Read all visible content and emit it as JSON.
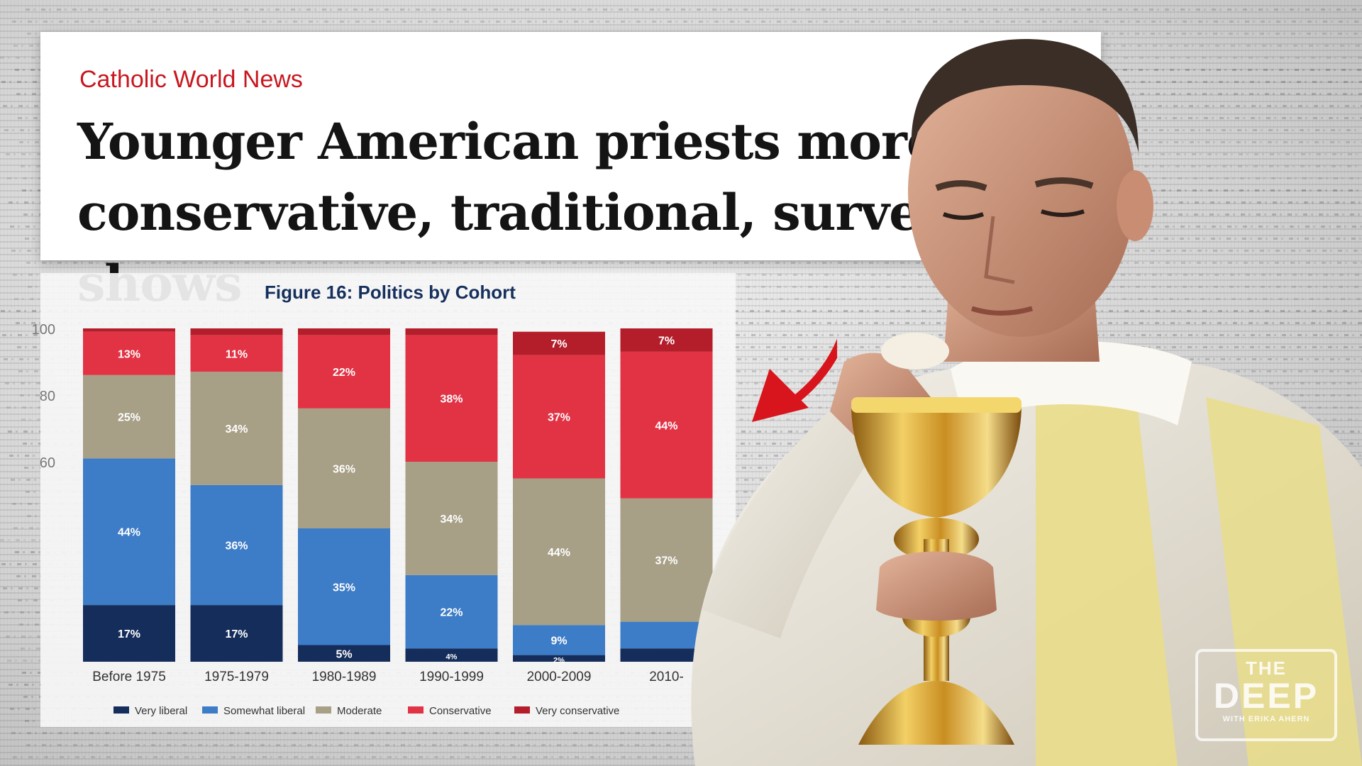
{
  "headline": {
    "source": "Catholic World News",
    "title": "Younger American priests more conservative, traditional, survey shows"
  },
  "watermark": {
    "line1": "THE",
    "line2": "DEEP",
    "line3": "WITH ERIKA AHERN"
  },
  "colors": {
    "very_liberal": "#152d5a",
    "somewhat_liberal": "#3d7cc6",
    "moderate": "#a79f86",
    "conservative": "#e23345",
    "very_conservative": "#b41e2a",
    "accent_red": "#d8141c"
  },
  "chart_data": {
    "type": "bar",
    "stacked": true,
    "title": "Figure 16: Politics by Cohort",
    "categories": [
      "Before 1975",
      "1975-1979",
      "1980-1989",
      "1990-1999",
      "2000-2009",
      "2010-"
    ],
    "ylim": [
      0,
      100
    ],
    "yticks": [
      60,
      80,
      100
    ],
    "legend_position": "bottom",
    "series": [
      {
        "name": "Very liberal",
        "color": "#152d5a",
        "values": [
          17,
          17,
          5,
          4,
          2,
          4
        ],
        "labels": [
          "17%",
          "17%",
          "5%",
          "4%",
          "2%",
          ""
        ]
      },
      {
        "name": "Somewhat liberal",
        "color": "#3d7cc6",
        "values": [
          44,
          36,
          35,
          22,
          9,
          8
        ],
        "labels": [
          "44%",
          "36%",
          "35%",
          "22%",
          "9%",
          ""
        ]
      },
      {
        "name": "Moderate",
        "color": "#a79f86",
        "values": [
          25,
          34,
          36,
          34,
          44,
          37
        ],
        "labels": [
          "25%",
          "34%",
          "36%",
          "34%",
          "44%",
          "37%"
        ]
      },
      {
        "name": "Conservative",
        "color": "#e23345",
        "values": [
          13,
          11,
          22,
          38,
          37,
          44
        ],
        "labels": [
          "13%",
          "11%",
          "22%",
          "38%",
          "37%",
          "44%"
        ]
      },
      {
        "name": "Very conservative",
        "color": "#b41e2a",
        "values": [
          1,
          2,
          2,
          2,
          7,
          7
        ],
        "labels": [
          "",
          "",
          "",
          "",
          "7%",
          "7%"
        ]
      }
    ]
  }
}
